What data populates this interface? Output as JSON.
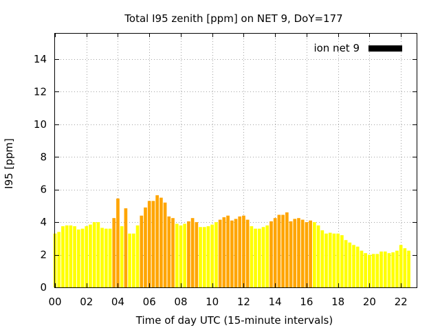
{
  "chart_data": {
    "type": "bar",
    "title": "Total I95 zenith [ppm] on NET 9, DoY=177",
    "xlabel": "Time of day UTC (15-minute intervals)",
    "ylabel": "I95 [ppm]",
    "xlim": [
      0,
      23
    ],
    "ylim": [
      0,
      15.6
    ],
    "xticks": [
      "00",
      "02",
      "04",
      "06",
      "08",
      "10",
      "12",
      "14",
      "16",
      "18",
      "20",
      "22"
    ],
    "yticks": [
      "0",
      "2",
      "4",
      "6",
      "8",
      "10",
      "12",
      "14"
    ],
    "grid": true,
    "legend": {
      "position": "top-right",
      "entries": [
        {
          "label": "ion net 9",
          "color": "#000000"
        }
      ]
    },
    "colors": {
      "high": "#ffa500",
      "low": "#ffff00"
    },
    "interval_hours": 0.25,
    "values": [
      3.3,
      3.4,
      3.75,
      3.8,
      3.8,
      3.75,
      3.55,
      3.6,
      3.75,
      3.85,
      4.0,
      4.0,
      3.65,
      3.6,
      3.6,
      4.25,
      5.45,
      3.75,
      4.85,
      3.3,
      3.3,
      3.8,
      4.4,
      4.9,
      5.3,
      5.3,
      5.65,
      5.5,
      5.2,
      4.35,
      4.25,
      3.9,
      3.8,
      3.9,
      4.05,
      4.25,
      4.0,
      3.7,
      3.7,
      3.75,
      3.85,
      4.0,
      4.15,
      4.3,
      4.4,
      4.1,
      4.2,
      4.35,
      4.4,
      4.15,
      3.75,
      3.6,
      3.6,
      3.7,
      3.8,
      4.05,
      4.25,
      4.45,
      4.45,
      4.6,
      4.05,
      4.2,
      4.25,
      4.15,
      4.0,
      4.1,
      4.0,
      3.8,
      3.5,
      3.3,
      3.35,
      3.3,
      3.3,
      3.2,
      2.9,
      2.75,
      2.6,
      2.5,
      2.25,
      2.1,
      2.0,
      2.05,
      2.05,
      2.2,
      2.2,
      2.1,
      2.15,
      2.25,
      2.6,
      2.4,
      2.25
    ],
    "high_flags": [
      0,
      0,
      0,
      0,
      0,
      0,
      0,
      0,
      0,
      0,
      0,
      0,
      0,
      0,
      0,
      1,
      1,
      0,
      1,
      0,
      0,
      0,
      1,
      1,
      1,
      1,
      1,
      1,
      1,
      1,
      1,
      0,
      0,
      0,
      1,
      1,
      1,
      0,
      0,
      0,
      0,
      0,
      1,
      1,
      1,
      1,
      1,
      1,
      1,
      1,
      0,
      0,
      0,
      0,
      0,
      1,
      1,
      1,
      1,
      1,
      1,
      1,
      1,
      1,
      1,
      1,
      0,
      0,
      0,
      0,
      0,
      0,
      0,
      0,
      0,
      0,
      0,
      0,
      0,
      0,
      0,
      0,
      0,
      0,
      0,
      0,
      0,
      0,
      0,
      0,
      0
    ]
  }
}
